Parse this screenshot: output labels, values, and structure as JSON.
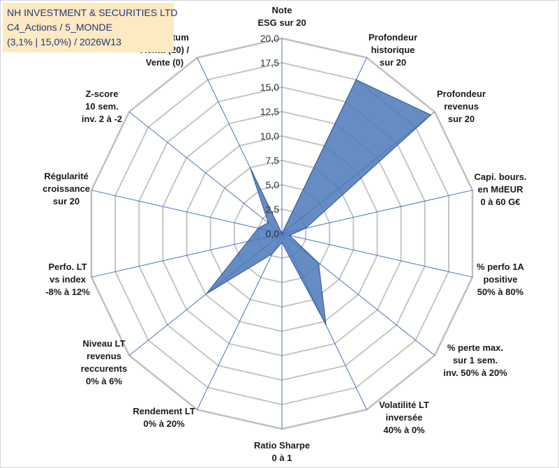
{
  "header": {
    "line1": "NH INVESTMENT & SECURITIES LTD",
    "line2": "C4_Actions / 5_MONDE",
    "line3": "(3,1% | 15,0%) / 2026W13"
  },
  "colors": {
    "fill": "#4a78b8",
    "stroke": "#2f5597",
    "spoke": "#4472c4",
    "ring": "#bfbfbf",
    "header_bg": "#fde9c2",
    "header_text": "#1f3a73"
  },
  "chart_data": {
    "type": "radar",
    "rmin": 0,
    "rmax": 20,
    "ticks": [
      "0,0",
      "2,5",
      "5,0",
      "7,5",
      "10,0",
      "12,5",
      "15,0",
      "17,5",
      "20,0"
    ],
    "axes": [
      {
        "label": [
          "Note",
          "ESG sur 20"
        ],
        "value": 0
      },
      {
        "label": [
          "Profondeur",
          "historique",
          "sur 20"
        ],
        "value": 17.5
      },
      {
        "label": [
          "Profondeur",
          "revenus",
          "sur 20"
        ],
        "value": 19.5
      },
      {
        "label": [
          "Capi. bours.",
          "en MdEUR",
          "0 à 60 G€"
        ],
        "value": 2.5
      },
      {
        "label": [
          "% perfo 1A",
          "positive",
          "50% à 80%"
        ],
        "value": 0.8
      },
      {
        "label": [
          "% perte max.",
          "sur 1 sem.",
          "inv. 50% à 20%"
        ],
        "value": 4.8
      },
      {
        "label": [
          "Volatilité LT",
          "inversée",
          "40% à 0%"
        ],
        "value": 10.4
      },
      {
        "label": [
          "Ratio Sharpe",
          "0 à 1"
        ],
        "value": 0.9
      },
      {
        "label": [
          "Rendement LT",
          "0% à 20%"
        ],
        "value": 2.3
      },
      {
        "label": [
          "Niveau LT",
          "revenus",
          "reccurents",
          "0% à 6%"
        ],
        "value": 9.9
      },
      {
        "label": [
          "Perfo. LT",
          "vs index",
          "-8% à 12%"
        ],
        "value": 3.6
      },
      {
        "label": [
          "Régularité",
          "croissance",
          "sur 20"
        ],
        "value": 2.5
      },
      {
        "label": [
          "Z-score",
          "10 sem.",
          "inv. 2 à -2"
        ],
        "value": 1.8
      },
      {
        "label": [
          "Momentum",
          "Achat (20) /",
          "Vente (0)"
        ],
        "value": 7.5
      }
    ]
  }
}
